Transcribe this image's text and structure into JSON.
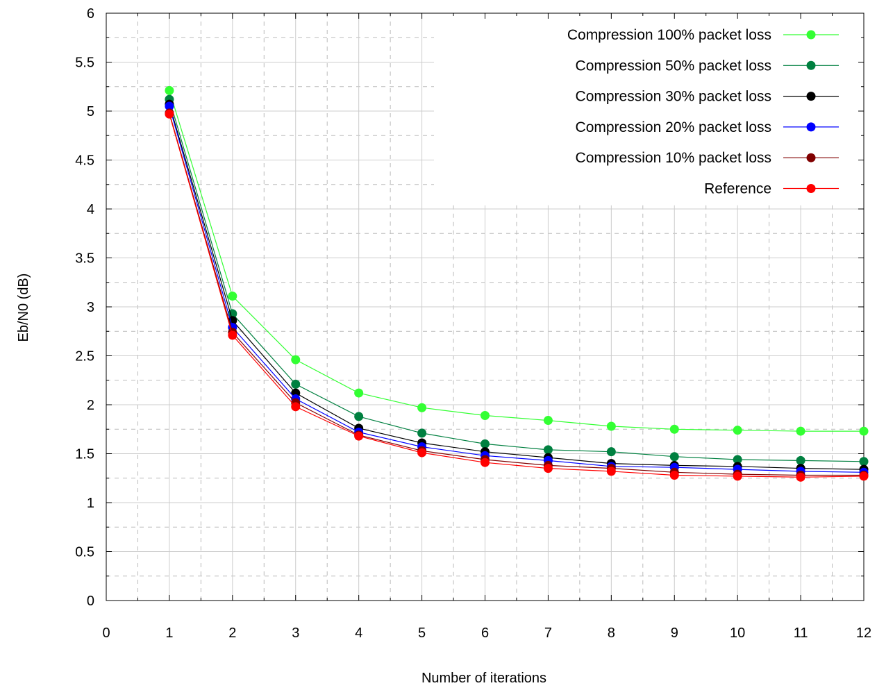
{
  "chart_data": {
    "type": "line",
    "title": "",
    "xlabel": "Number of iterations",
    "ylabel": "Eb/N0 (dB)",
    "xlim": [
      0,
      12
    ],
    "ylim": [
      0,
      6
    ],
    "x_ticks": [
      "0",
      "1",
      "2",
      "3",
      "4",
      "5",
      "6",
      "7",
      "8",
      "9",
      "10",
      "11",
      "12"
    ],
    "y_ticks": [
      "0",
      "0.5",
      "1",
      "1.5",
      "2",
      "2.5",
      "3",
      "3.5",
      "4",
      "4.5",
      "5",
      "5.5",
      "6"
    ],
    "grid": true,
    "legend_position": "top-right",
    "x": [
      1,
      2,
      3,
      4,
      5,
      6,
      7,
      8,
      9,
      10,
      11,
      12
    ],
    "series": [
      {
        "name": "Compression 100% packet loss",
        "color": "#33ff33",
        "values": [
          5.21,
          3.11,
          2.46,
          2.12,
          1.97,
          1.89,
          1.84,
          1.78,
          1.75,
          1.74,
          1.73,
          1.73
        ]
      },
      {
        "name": "Compression 50% packet loss",
        "color": "#008040",
        "values": [
          5.12,
          2.93,
          2.21,
          1.88,
          1.71,
          1.6,
          1.54,
          1.52,
          1.47,
          1.44,
          1.43,
          1.42
        ]
      },
      {
        "name": "Compression 30% packet loss",
        "color": "#000000",
        "values": [
          5.07,
          2.86,
          2.12,
          1.76,
          1.61,
          1.52,
          1.46,
          1.4,
          1.38,
          1.37,
          1.35,
          1.34
        ]
      },
      {
        "name": "Compression 20% packet loss",
        "color": "#0000ff",
        "values": [
          5.05,
          2.79,
          2.06,
          1.72,
          1.57,
          1.48,
          1.43,
          1.37,
          1.36,
          1.34,
          1.32,
          1.31
        ]
      },
      {
        "name": "Compression 10% packet loss",
        "color": "#800000",
        "values": [
          4.98,
          2.74,
          2.02,
          1.69,
          1.53,
          1.44,
          1.38,
          1.35,
          1.31,
          1.29,
          1.28,
          1.28
        ]
      },
      {
        "name": "Reference",
        "color": "#ff0000",
        "values": [
          4.97,
          2.71,
          1.98,
          1.68,
          1.51,
          1.41,
          1.35,
          1.32,
          1.28,
          1.27,
          1.26,
          1.27
        ]
      }
    ]
  }
}
